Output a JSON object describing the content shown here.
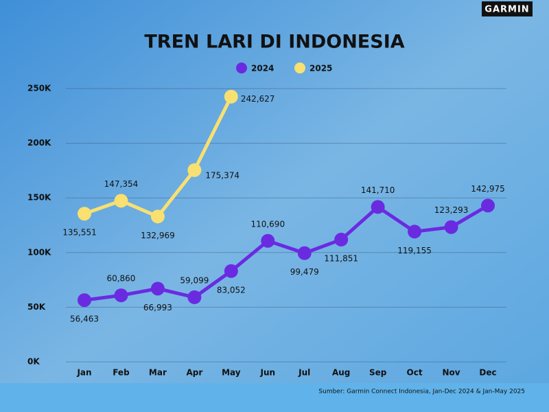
{
  "chart_data": {
    "type": "line",
    "brand": "GARMIN",
    "title": "TREN LARI DI INDONESIA",
    "source": "Sumber: Garmin Connect Indonesia, Jan-Dec 2024 & Jan-May 2025",
    "categories": [
      "Jan",
      "Feb",
      "Mar",
      "Apr",
      "May",
      "Jun",
      "Jul",
      "Aug",
      "Sep",
      "Oct",
      "Nov",
      "Dec"
    ],
    "series": [
      {
        "name": "2024",
        "color": "#6a2be0",
        "values": [
          56463,
          60860,
          66993,
          59099,
          83052,
          110690,
          99479,
          111851,
          141710,
          119155,
          123293,
          142975
        ],
        "value_labels": [
          "56,463",
          "60,860",
          "66,993",
          "59,099",
          "83,052",
          "110,690",
          "99,479",
          "111,851",
          "141,710",
          "119,155",
          "123,293",
          "142,975"
        ]
      },
      {
        "name": "2025",
        "color": "#f8e071",
        "values": [
          135551,
          147354,
          132969,
          175374,
          242627,
          null,
          null,
          null,
          null,
          null,
          null,
          null
        ],
        "value_labels": [
          "135,551",
          "147,354",
          "132,969",
          "175,374",
          "242,627",
          null,
          null,
          null,
          null,
          null,
          null,
          null
        ]
      }
    ],
    "ylim": [
      0,
      250000
    ],
    "yticks": [
      {
        "value": 0,
        "label": "0K"
      },
      {
        "value": 50000,
        "label": "50K"
      },
      {
        "value": 100000,
        "label": "100K"
      },
      {
        "value": 150000,
        "label": "150K"
      },
      {
        "value": 200000,
        "label": "200K"
      },
      {
        "value": 250000,
        "label": "250K"
      }
    ],
    "grid": true,
    "legend": "top"
  }
}
